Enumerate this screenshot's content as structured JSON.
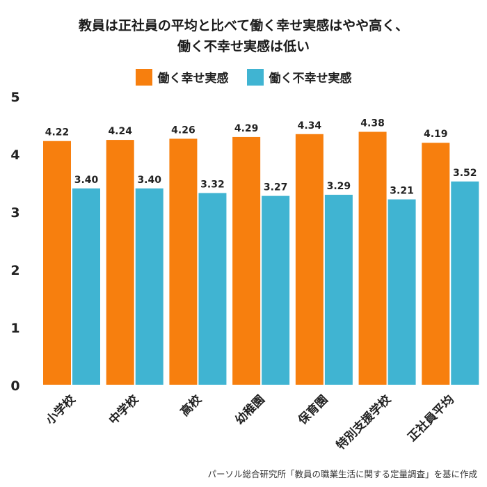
{
  "chart_data": {
    "type": "bar",
    "title_line1": "教員は正社員の平均と比べて働く幸せ実感はやや高く、",
    "title_line2": "働く不幸せ実感は低い",
    "categories": [
      "小学校",
      "中学校",
      "高校",
      "幼稚園",
      "保育園",
      "特別支援学校",
      "正社員平均"
    ],
    "series": [
      {
        "name": "働く幸せ実感",
        "color": "#f77f0e",
        "values": [
          4.22,
          4.24,
          4.26,
          4.29,
          4.34,
          4.38,
          4.19
        ]
      },
      {
        "name": "働く不幸せ実感",
        "color": "#40b4d2",
        "values": [
          3.4,
          3.4,
          3.32,
          3.27,
          3.29,
          3.21,
          3.52
        ]
      }
    ],
    "ylim": [
      0,
      5
    ],
    "yticks": [
      "0",
      "1",
      "2",
      "3",
      "4",
      "5"
    ],
    "grid": false,
    "legend_position": "top-center",
    "source": "パーソル総合研究所「教員の職業生活に関する定量調査」を基に作成"
  }
}
